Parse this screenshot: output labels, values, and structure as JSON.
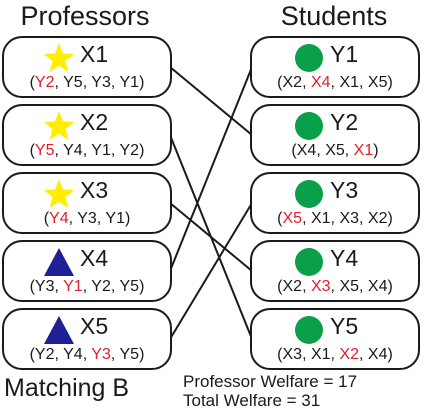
{
  "headers": {
    "professors": "Professors",
    "students": "Students"
  },
  "professors": [
    {
      "name": "X1",
      "shape": "star",
      "prefs": [
        "Y2",
        "Y5",
        "Y3",
        "Y1"
      ],
      "highlight": 0
    },
    {
      "name": "X2",
      "shape": "star",
      "prefs": [
        "Y5",
        "Y4",
        "Y1",
        "Y2"
      ],
      "highlight": 0
    },
    {
      "name": "X3",
      "shape": "star",
      "prefs": [
        "Y4",
        "Y3",
        "Y1"
      ],
      "highlight": 0
    },
    {
      "name": "X4",
      "shape": "triangle",
      "prefs": [
        "Y3",
        "Y1",
        "Y2",
        "Y5"
      ],
      "highlight": 1
    },
    {
      "name": "X5",
      "shape": "triangle",
      "prefs": [
        "Y2",
        "Y4",
        "Y3",
        "Y5"
      ],
      "highlight": 2
    }
  ],
  "students": [
    {
      "name": "Y1",
      "shape": "circle",
      "prefs": [
        "X2",
        "X4",
        "X1",
        "X5"
      ],
      "highlight": 1
    },
    {
      "name": "Y2",
      "shape": "circle",
      "prefs": [
        "X4",
        "X5",
        "X1"
      ],
      "highlight": 2
    },
    {
      "name": "Y3",
      "shape": "circle",
      "prefs": [
        "X5",
        "X1",
        "X3",
        "X2"
      ],
      "highlight": 0
    },
    {
      "name": "Y4",
      "shape": "circle",
      "prefs": [
        "X2",
        "X3",
        "X5",
        "X4"
      ],
      "highlight": 1
    },
    {
      "name": "Y5",
      "shape": "circle",
      "prefs": [
        "X3",
        "X1",
        "X2",
        "X4"
      ],
      "highlight": 2
    }
  ],
  "matching": [
    {
      "professor": "X1",
      "student": "Y2"
    },
    {
      "professor": "X2",
      "student": "Y5"
    },
    {
      "professor": "X3",
      "student": "Y4"
    },
    {
      "professor": "X4",
      "student": "Y1"
    },
    {
      "professor": "X5",
      "student": "Y3"
    }
  ],
  "caption": "Matching B",
  "stats": {
    "professor_welfare": "Professor Welfare = 17",
    "total_welfare": "Total Welfare = 31"
  },
  "colors": {
    "star": "#ffee00",
    "triangle": "#1f1f96",
    "circle": "#0aa04a",
    "highlight": "#e0202a",
    "line": "#1a1a1a"
  }
}
